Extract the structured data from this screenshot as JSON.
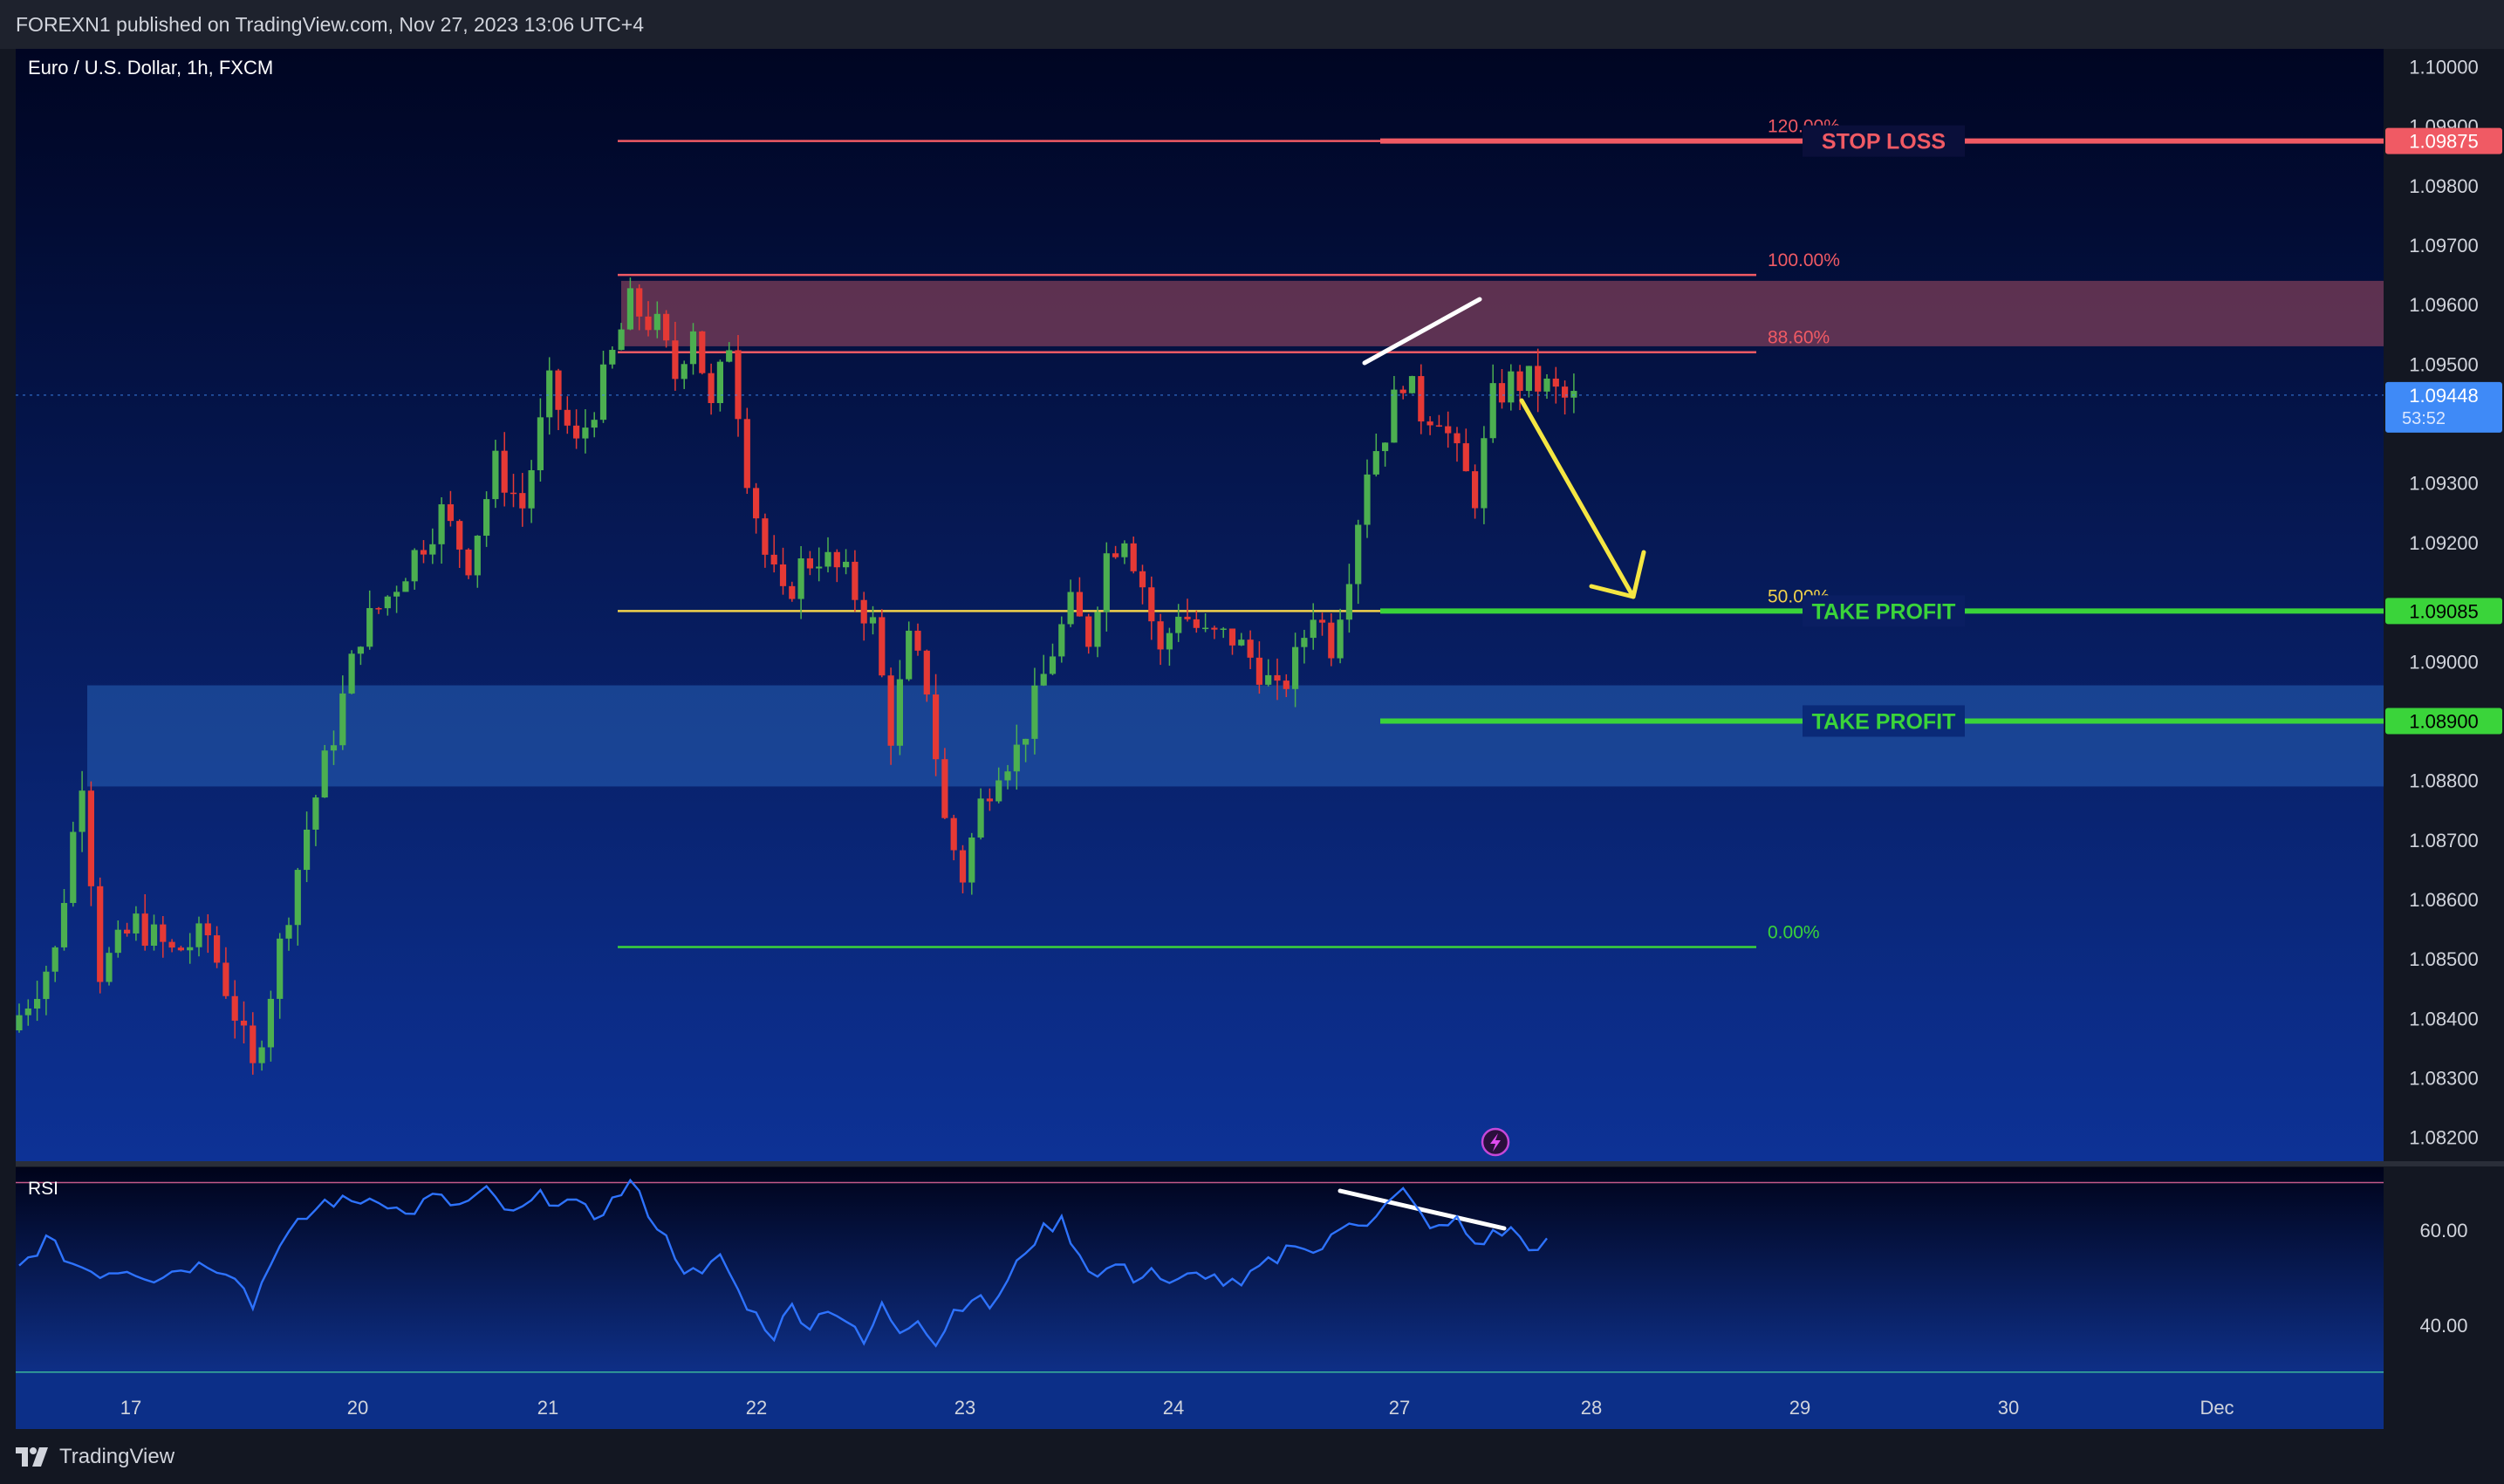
{
  "header": {
    "publish_line": "FOREXN1 published on TradingView.com, Nov 27, 2023 13:06 UTC+4"
  },
  "footer": {
    "brand": "TradingView"
  },
  "colors": {
    "background_top": "#000522",
    "background_bottom": "#0d3296",
    "candle_up": "#4caf50",
    "candle_down": "#e53935",
    "stop_loss": "#f05a64",
    "take_profit": "#3ad43a",
    "fib_mid": "#f2d24b",
    "rsi_line": "#2e73ff",
    "current_price": "#3f8af7",
    "arrow": "#f5e642"
  },
  "chart_data": [
    {
      "type": "candlestick",
      "title": "Euro / U.S. Dollar, 1h, FXCM",
      "x_labels": [
        "17",
        "20",
        "21",
        "22",
        "23",
        "24",
        "27",
        "28",
        "29",
        "30",
        "Dec"
      ],
      "y_ticks": [
        "1.10000",
        "1.09900",
        "1.09800",
        "1.09700",
        "1.09600",
        "1.09500",
        "1.09300",
        "1.09200",
        "1.09000",
        "1.08800",
        "1.08700",
        "1.08600",
        "1.08500",
        "1.08400",
        "1.08300",
        "1.08200"
      ],
      "ylim": [
        1.0816,
        1.1003
      ],
      "current_price": {
        "value": "1.09448",
        "countdown": "53:52"
      },
      "price_tags": {
        "stop_loss": "1.09875",
        "take_profit_1": "1.09085",
        "take_profit_2": "1.08900"
      },
      "fib_levels": [
        {
          "label": "120.00%",
          "price": 1.09875
        },
        {
          "label": "100.00%",
          "price": 1.0965
        },
        {
          "label": "88.60%",
          "price": 1.0952
        },
        {
          "label": "50.00%",
          "price": 1.09085
        },
        {
          "label": "0.00%",
          "price": 1.0852
        }
      ],
      "annotations": {
        "stop_loss": "STOP LOSS",
        "take_profit_1": "TAKE PROFIT",
        "take_profit_2": "TAKE PROFIT"
      },
      "zones": [
        {
          "name": "supply",
          "from": 1.0953,
          "to": 1.0964
        },
        {
          "name": "demand",
          "from": 1.0879,
          "to": 1.0896
        }
      ],
      "path": [
        [
          0,
          1.0838
        ],
        [
          5,
          1.0851
        ],
        [
          8,
          1.0881
        ],
        [
          10,
          1.0848
        ],
        [
          14,
          1.0856
        ],
        [
          18,
          1.0851
        ],
        [
          22,
          1.0854
        ],
        [
          25,
          1.0841
        ],
        [
          27,
          1.0831
        ],
        [
          30,
          1.0852
        ],
        [
          33,
          1.0872
        ],
        [
          36,
          1.0888
        ],
        [
          39,
          1.0905
        ],
        [
          42,
          1.0911
        ],
        [
          45,
          1.0918
        ],
        [
          48,
          1.0925
        ],
        [
          51,
          1.0917
        ],
        [
          54,
          1.0933
        ],
        [
          57,
          1.0926
        ],
        [
          60,
          1.0946
        ],
        [
          63,
          1.0936
        ],
        [
          66,
          1.0947
        ],
        [
          69,
          1.096
        ],
        [
          72,
          1.0956
        ],
        [
          74,
          1.0948
        ],
        [
          76,
          1.0957
        ],
        [
          78,
          1.0942
        ],
        [
          80,
          1.0954
        ],
        [
          82,
          1.0932
        ],
        [
          84,
          1.0918
        ],
        [
          86,
          1.091
        ],
        [
          88,
          1.0916
        ],
        [
          90,
          1.0918
        ],
        [
          93,
          1.0914
        ],
        [
          96,
          1.0906
        ],
        [
          98,
          1.0888
        ],
        [
          100,
          1.0903
        ],
        [
          102,
          1.0896
        ],
        [
          104,
          1.0873
        ],
        [
          106,
          1.0864
        ],
        [
          108,
          1.0876
        ],
        [
          110,
          1.0883
        ],
        [
          112,
          1.0885
        ],
        [
          114,
          1.0893
        ],
        [
          116,
          1.0902
        ],
        [
          118,
          1.0909
        ],
        [
          120,
          1.0904
        ],
        [
          122,
          1.0918
        ],
        [
          124,
          1.0922
        ],
        [
          126,
          1.0913
        ],
        [
          128,
          1.0901
        ],
        [
          130,
          1.0909
        ],
        [
          133,
          1.0904
        ],
        [
          136,
          1.0904
        ],
        [
          139,
          1.0899
        ],
        [
          141,
          1.0894
        ],
        [
          143,
          1.09
        ],
        [
          145,
          1.0909
        ],
        [
          147,
          1.0903
        ],
        [
          149,
          1.0916
        ],
        [
          151,
          1.0933
        ],
        [
          153,
          1.0939
        ],
        [
          155,
          1.0948
        ],
        [
          157,
          1.0942
        ],
        [
          159,
          1.0942
        ],
        [
          161,
          1.0934
        ],
        [
          163,
          1.0928
        ],
        [
          165,
          1.0944
        ],
        [
          167,
          1.0947
        ],
        [
          169,
          1.0947
        ],
        [
          171,
          1.0946
        ],
        [
          173,
          1.0944
        ]
      ]
    },
    {
      "type": "line",
      "title": "RSI",
      "y_ticks": [
        "60.00",
        "40.00"
      ],
      "ylim": [
        30.5,
        73.2
      ],
      "upper_band": 70,
      "lower_band": 30,
      "path": [
        [
          0,
          52
        ],
        [
          3,
          58
        ],
        [
          6,
          53
        ],
        [
          9,
          51
        ],
        [
          12,
          52
        ],
        [
          15,
          50
        ],
        [
          18,
          52
        ],
        [
          21,
          53
        ],
        [
          24,
          51
        ],
        [
          26,
          44
        ],
        [
          28,
          54
        ],
        [
          31,
          61
        ],
        [
          34,
          66
        ],
        [
          37,
          66
        ],
        [
          40,
          67
        ],
        [
          43,
          63
        ],
        [
          46,
          67
        ],
        [
          49,
          65
        ],
        [
          52,
          68
        ],
        [
          55,
          63
        ],
        [
          58,
          67
        ],
        [
          61,
          66
        ],
        [
          64,
          63
        ],
        [
          66,
          66
        ],
        [
          68,
          70
        ],
        [
          70,
          64
        ],
        [
          72,
          58
        ],
        [
          74,
          52
        ],
        [
          76,
          50
        ],
        [
          78,
          55
        ],
        [
          80,
          47
        ],
        [
          82,
          42
        ],
        [
          84,
          38
        ],
        [
          86,
          44
        ],
        [
          88,
          40
        ],
        [
          90,
          44
        ],
        [
          92,
          41
        ],
        [
          94,
          36
        ],
        [
          96,
          44
        ],
        [
          98,
          39
        ],
        [
          100,
          42
        ],
        [
          102,
          36
        ],
        [
          104,
          43
        ],
        [
          106,
          46
        ],
        [
          108,
          44
        ],
        [
          110,
          49
        ],
        [
          112,
          56
        ],
        [
          114,
          60
        ],
        [
          116,
          62
        ],
        [
          118,
          55
        ],
        [
          120,
          50
        ],
        [
          122,
          53
        ],
        [
          124,
          50
        ],
        [
          126,
          52
        ],
        [
          128,
          48
        ],
        [
          130,
          50
        ],
        [
          132,
          51
        ],
        [
          134,
          49
        ],
        [
          136,
          48
        ],
        [
          138,
          52
        ],
        [
          140,
          54
        ],
        [
          142,
          58
        ],
        [
          144,
          55
        ],
        [
          146,
          58
        ],
        [
          148,
          62
        ],
        [
          150,
          62
        ],
        [
          152,
          65
        ],
        [
          154,
          68
        ],
        [
          156,
          63
        ],
        [
          158,
          60
        ],
        [
          160,
          62
        ],
        [
          162,
          57
        ],
        [
          164,
          59
        ],
        [
          166,
          60
        ],
        [
          168,
          57
        ],
        [
          169,
          55
        ],
        [
          170,
          57
        ]
      ]
    }
  ]
}
